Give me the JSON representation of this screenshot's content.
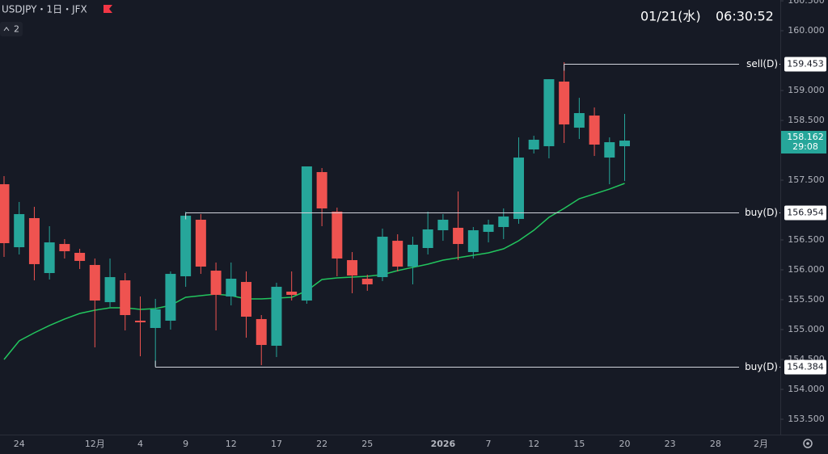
{
  "header": {
    "title": "USDJPY・1日・JFX",
    "indicators": "2",
    "date": "01/21(水)",
    "time": "06:30:52"
  },
  "chart_data": {
    "type": "candlestick",
    "categories": [
      null,
      "24",
      null,
      null,
      null,
      null,
      "12月",
      null,
      null,
      "4",
      null,
      null,
      "9",
      null,
      null,
      "12",
      null,
      null,
      "17",
      null,
      null,
      "22",
      null,
      null,
      "25",
      null,
      null,
      null,
      null,
      "2026",
      null,
      null,
      "7",
      null,
      null,
      "12",
      null,
      null,
      "15",
      null,
      null,
      "20",
      null,
      null,
      "23",
      null,
      null,
      "28",
      null,
      null,
      "2月"
    ],
    "open": [
      157.432,
      156.378,
      156.865,
      155.946,
      156.432,
      156.284,
      156.081,
      155.459,
      155.824,
      155.149,
      155.027,
      155.149,
      155.892,
      156.838,
      155.986,
      155.554,
      155.797,
      155.176,
      154.73,
      155.635,
      155.486,
      157.635,
      156.973,
      156.162,
      155.851,
      155.878,
      156.486,
      156.054,
      156.365,
      156.662,
      156.703,
      156.297,
      156.635,
      156.716,
      156.851,
      158.014,
      158.068,
      159.149,
      158.378,
      158.581,
      157.878,
      158.068,
      null,
      null,
      null,
      null,
      null,
      null,
      null,
      null,
      null
    ],
    "high": [
      157.568,
      157.135,
      157.054,
      156.73,
      156.514,
      156.351,
      156.189,
      156.189,
      155.946,
      155.554,
      155.514,
      155.973,
      156.973,
      156.932,
      156.122,
      156.122,
      155.973,
      155.243,
      155.784,
      155.973,
      157.73,
      157.703,
      157.041,
      156.297,
      155.919,
      156.689,
      156.595,
      156.554,
      156.973,
      156.932,
      157.311,
      156.716,
      156.838,
      157.027,
      158.216,
      158.243,
      159.189,
      159.473,
      158.878,
      158.716,
      158.216,
      158.608,
      null,
      null,
      null,
      null,
      null,
      null,
      null,
      null,
      null
    ],
    "low": [
      156.216,
      156.257,
      155.824,
      155.838,
      156.189,
      156.014,
      154.703,
      155.378,
      154.986,
      154.554,
      154.392,
      155.0,
      155.716,
      155.932,
      154.986,
      155.405,
      154.865,
      154.405,
      154.541,
      155.486,
      155.432,
      156.73,
      155.892,
      155.608,
      155.649,
      155.811,
      155.973,
      155.757,
      156.257,
      156.486,
      156.162,
      156.189,
      156.459,
      156.514,
      156.77,
      157.946,
      157.865,
      158.122,
      158.189,
      157.905,
      157.432,
      157.486,
      null,
      null,
      null,
      null,
      null,
      null,
      null,
      null,
      null
    ],
    "close": [
      156.446,
      156.932,
      156.095,
      156.459,
      156.311,
      156.149,
      155.486,
      155.878,
      155.243,
      155.122,
      155.338,
      155.932,
      156.905,
      156.054,
      155.581,
      155.851,
      155.216,
      154.743,
      155.716,
      155.581,
      157.73,
      157.027,
      156.189,
      155.905,
      155.757,
      156.554,
      156.054,
      156.419,
      156.676,
      156.838,
      156.432,
      156.662,
      156.757,
      156.892,
      157.878,
      158.176,
      159.189,
      158.432,
      158.622,
      158.095,
      158.135,
      158.162,
      null,
      null,
      null,
      null,
      null,
      null,
      null,
      null,
      null
    ],
    "up_color": "#26a69a",
    "down_color": "#ef5350",
    "series": [
      {
        "color": "#22c55e",
        "values": [
          154.5,
          154.811,
          154.946,
          155.068,
          155.176,
          155.27,
          155.324,
          155.365,
          155.365,
          155.338,
          155.351,
          155.405,
          155.541,
          155.568,
          155.595,
          155.568,
          155.514,
          155.514,
          155.527,
          155.541,
          155.649,
          155.838,
          155.865,
          155.878,
          155.892,
          155.919,
          155.986,
          156.041,
          156.095,
          156.162,
          156.203,
          156.243,
          156.284,
          156.351,
          156.486,
          156.662,
          156.878,
          157.027,
          157.189,
          157.27,
          157.351,
          157.446,
          null,
          null,
          null,
          null,
          null,
          null,
          null,
          null,
          null
        ]
      }
    ],
    "lines": [
      {
        "label": "sell(D)",
        "value": 159.453
      },
      {
        "label": "buy(D)",
        "value": 156.954
      },
      {
        "label": "buy(D)",
        "value": 154.384
      }
    ],
    "countdown": "29:08",
    "ylim": [
      153.243,
      160.514
    ],
    "yticks": [
      {
        "value": 153.5,
        "label": "153.500"
      },
      {
        "value": 154,
        "label": "154.000"
      },
      {
        "value": 154.5,
        "label": "154.500"
      },
      {
        "value": 155,
        "label": "155.000"
      },
      {
        "value": 155.5,
        "label": "155.500"
      },
      {
        "value": 156,
        "label": "156.000"
      },
      {
        "value": 156.5,
        "label": "156.500"
      },
      {
        "value": 157.5,
        "label": "157.500"
      },
      {
        "value": 158.5,
        "label": "158.500"
      },
      {
        "value": 159,
        "label": "159.000"
      },
      {
        "value": 160,
        "label": "160.000"
      },
      {
        "value": 160.5,
        "label": "160.500"
      }
    ],
    "grid": false
  }
}
